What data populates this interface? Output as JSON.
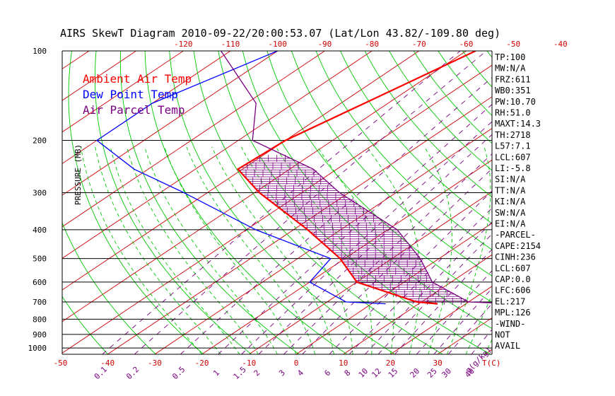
{
  "chart_data": {
    "type": "line",
    "title": "AIRS SkewT Diagram 2010-09-22/20:00:53.07 (Lat/Lon 43.82/-109.80 deg)",
    "ylabel": "PRESSURE (MB)",
    "x_unit_label": "T(C)",
    "mixing_ratio_unit_label": "g(g/kg)",
    "pressure_levels": [
      100,
      200,
      300,
      400,
      500,
      600,
      700,
      800,
      900,
      1000
    ],
    "pressure_tick_labels": [
      "100",
      "200",
      "300",
      "400",
      "500",
      "600",
      "700",
      "800",
      "900",
      "1000"
    ],
    "ylim": [
      1050,
      100
    ],
    "top_temp_ticks": [
      -120,
      -110,
      -100,
      -90,
      -80,
      -70,
      -60,
      -50,
      -40
    ],
    "top_temp_tick_labels": [
      "-120",
      "-110",
      "-100",
      "-90",
      "-80",
      "-70",
      "-60",
      "-50",
      "-40"
    ],
    "bottom_temp_ticks": [
      -50,
      -40,
      -30,
      -20,
      -10,
      0,
      10,
      20,
      30
    ],
    "bottom_temp_tick_labels": [
      "-50",
      "-40",
      "-30",
      "-20",
      "-10",
      "0",
      "10",
      "20",
      "30"
    ],
    "mixing_ratio_values": [
      0.1,
      0.2,
      0.5,
      1,
      1.5,
      2,
      3,
      4,
      6,
      8,
      10,
      12,
      15,
      20,
      25,
      30,
      40
    ],
    "mixing_ratio_labels": [
      "0.1",
      "0.2",
      "0.5",
      "1",
      "1.5",
      "2",
      "3",
      "4",
      "6",
      "8",
      "10",
      "12",
      "15",
      "20",
      "25",
      "30",
      "40"
    ],
    "legend": [
      {
        "label": "Ambient Air Temp",
        "color": "#ff0000"
      },
      {
        "label": "Dew Point Temp",
        "color": "#0000ff"
      },
      {
        "label": "Air Parcel Temp",
        "color": "#7a0080"
      }
    ],
    "series": [
      {
        "name": "Ambient Air Temp",
        "color": "#ff0000",
        "points": [
          {
            "p": 100,
            "t": -58
          },
          {
            "p": 150,
            "t": -65
          },
          {
            "p": 200,
            "t": -70
          },
          {
            "p": 250,
            "t": -71
          },
          {
            "p": 300,
            "t": -59
          },
          {
            "p": 400,
            "t": -37
          },
          {
            "p": 500,
            "t": -21
          },
          {
            "p": 600,
            "t": -10
          },
          {
            "p": 700,
            "t": 9
          },
          {
            "p": 710,
            "t": 14
          }
        ]
      },
      {
        "name": "Dew Point Temp",
        "color": "#0000ff",
        "points": [
          {
            "p": 100,
            "t": -100
          },
          {
            "p": 150,
            "t": -110
          },
          {
            "p": 200,
            "t": -110
          },
          {
            "p": 250,
            "t": -93
          },
          {
            "p": 300,
            "t": -75
          },
          {
            "p": 400,
            "t": -48
          },
          {
            "p": 500,
            "t": -23
          },
          {
            "p": 600,
            "t": -20
          },
          {
            "p": 700,
            "t": -6
          },
          {
            "p": 710,
            "t": 3
          }
        ]
      },
      {
        "name": "Air Parcel Temp",
        "color": "#7a0080",
        "points": [
          {
            "p": 100,
            "t": -112
          },
          {
            "p": 150,
            "t": -88
          },
          {
            "p": 200,
            "t": -77
          },
          {
            "p": 250,
            "t": -55
          },
          {
            "p": 300,
            "t": -42
          },
          {
            "p": 400,
            "t": -18
          },
          {
            "p": 500,
            "t": -4
          },
          {
            "p": 600,
            "t": 6
          },
          {
            "p": 700,
            "t": 20
          },
          {
            "p": 710,
            "t": 30
          }
        ]
      }
    ]
  },
  "stats": [
    "TP:100",
    "MW:N/A",
    "FRZ:611",
    "WB0:351",
    "PW:10.70",
    "RH:51.0",
    "MAXT:14.3",
    "TH:2718",
    "L57:7.1",
    "LCL:607",
    "LI:-5.8",
    "SI:N/A",
    "TT:N/A",
    "KI:N/A",
    "SW:N/A",
    "EI:N/A",
    "-PARCEL-",
    "CAPE:2154",
    "CINH:236",
    "LCL:607",
    "CAP:0.0",
    "LFC:606",
    "EL:217",
    "MPL:126",
    "-WIND-",
    " NOT",
    " AVAIL"
  ],
  "colors": {
    "isotherm": "#d00000",
    "dry_adiabat": "#00c800",
    "moist_adiabat": "#00c800",
    "mixing_ratio": "#7a0080",
    "isobar": "#000000",
    "tick_temp": "#d00000",
    "tick_mixing": "#7a0080"
  }
}
